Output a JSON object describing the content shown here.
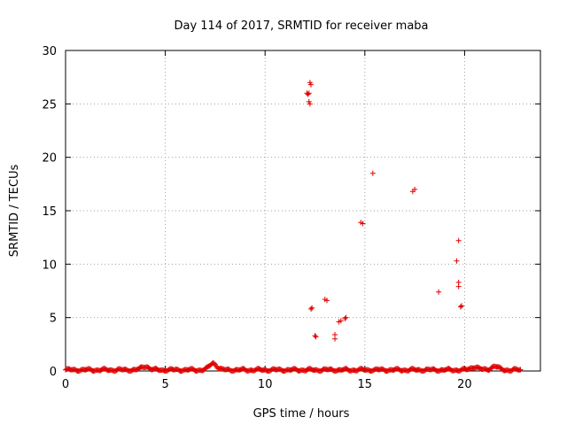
{
  "chart_data": {
    "type": "scatter",
    "title": "Day 114 of 2017, SRMTID for receiver maba",
    "xlabel": "GPS time / hours",
    "ylabel": "SRMTID / TECUs",
    "xlim": [
      0,
      23.8
    ],
    "ylim": [
      0,
      30
    ],
    "xticks": [
      0,
      5,
      10,
      15,
      20
    ],
    "yticks": [
      0,
      5,
      10,
      15,
      20,
      25,
      30
    ],
    "grid": true,
    "marker": "+",
    "color": "#e00000",
    "baseline": {
      "x_start": 0.0,
      "x_end": 22.8,
      "x_step": 0.05,
      "y_typical": 0.1,
      "bumps": [
        {
          "x": 4.0,
          "y": 0.45
        },
        {
          "x": 7.4,
          "y": 0.75
        },
        {
          "x": 20.5,
          "y": 0.4
        },
        {
          "x": 21.5,
          "y": 0.45
        }
      ]
    },
    "points": [
      {
        "x": 12.1,
        "y": 26.0
      },
      {
        "x": 12.15,
        "y": 25.9
      },
      {
        "x": 12.2,
        "y": 26.0
      },
      {
        "x": 12.25,
        "y": 27.0
      },
      {
        "x": 12.3,
        "y": 26.8
      },
      {
        "x": 12.2,
        "y": 25.2
      },
      {
        "x": 12.25,
        "y": 25.0
      },
      {
        "x": 12.3,
        "y": 5.8
      },
      {
        "x": 12.35,
        "y": 5.9
      },
      {
        "x": 12.5,
        "y": 3.3
      },
      {
        "x": 12.55,
        "y": 3.2
      },
      {
        "x": 13.0,
        "y": 6.7
      },
      {
        "x": 13.1,
        "y": 6.6
      },
      {
        "x": 13.5,
        "y": 3.0
      },
      {
        "x": 13.5,
        "y": 3.4
      },
      {
        "x": 13.7,
        "y": 4.6
      },
      {
        "x": 13.8,
        "y": 4.7
      },
      {
        "x": 14.0,
        "y": 4.9
      },
      {
        "x": 14.05,
        "y": 5.0
      },
      {
        "x": 14.8,
        "y": 13.9
      },
      {
        "x": 14.9,
        "y": 13.8
      },
      {
        "x": 15.4,
        "y": 18.5
      },
      {
        "x": 17.4,
        "y": 16.8
      },
      {
        "x": 17.5,
        "y": 17.0
      },
      {
        "x": 18.7,
        "y": 7.4
      },
      {
        "x": 19.6,
        "y": 10.3
      },
      {
        "x": 19.7,
        "y": 12.2
      },
      {
        "x": 19.7,
        "y": 8.3
      },
      {
        "x": 19.7,
        "y": 7.9
      },
      {
        "x": 19.8,
        "y": 6.0
      },
      {
        "x": 19.85,
        "y": 6.1
      }
    ]
  }
}
